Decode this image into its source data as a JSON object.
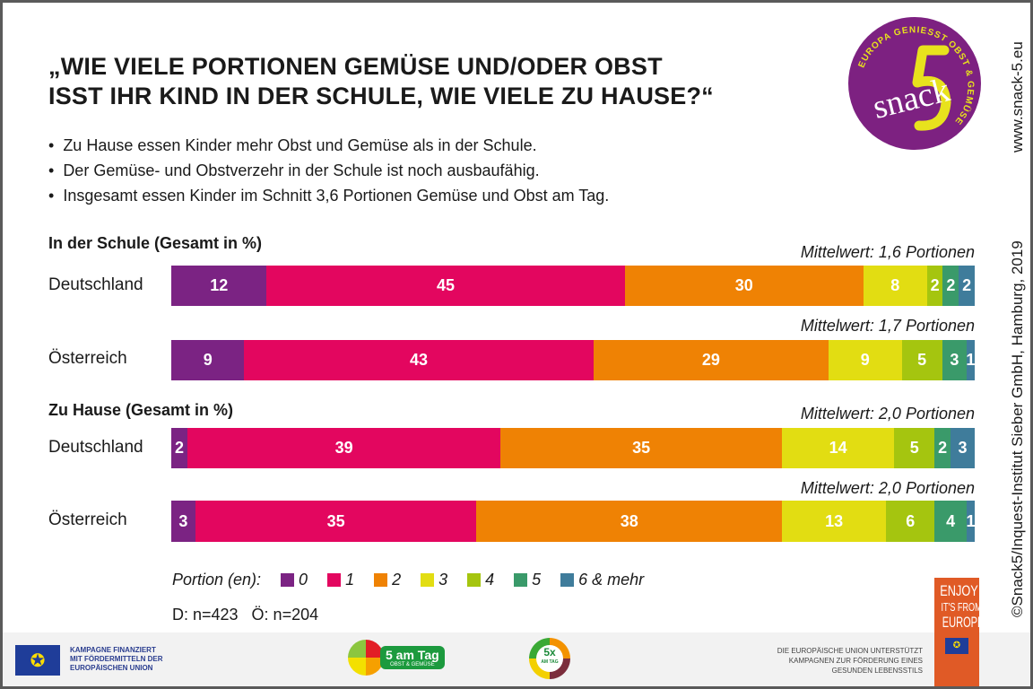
{
  "title_lines": [
    "„WIE VIELE PORTIONEN GEMÜSE UND/ODER OBST",
    "ISST IHR KIND IN DER SCHULE, WIE VIELE ZU HAUSE?“"
  ],
  "bullets": [
    "Zu Hause essen Kinder mehr Obst und Gemüse als in der Schule.",
    "Der Gemüse- und Obstverzehr in der Schule ist noch ausbaufähig.",
    "Insgesamt essen Kinder im Schnitt 3,6 Portionen Gemüse und Obst am Tag."
  ],
  "logo": {
    "text": "snack",
    "numeral": "5",
    "ring": "EUROPA GENIESST OBST & GEMÜSE",
    "colors": {
      "bg": "#7d2181",
      "accent": "#e8e21d"
    }
  },
  "side": {
    "url": "www.snack-5.eu",
    "copyright": "©Snack5/Inquest-Institut Sieber GmbH, Hamburg, 2019"
  },
  "chart_data": {
    "type": "bar",
    "orientation": "horizontal",
    "stacked": true,
    "unit": "%",
    "categories": [
      "0",
      "1",
      "2",
      "3",
      "4",
      "5",
      "6 & mehr"
    ],
    "colors": [
      "#7b2383",
      "#e3065f",
      "#ef8204",
      "#e2dd12",
      "#a5c50f",
      "#3a9a6a",
      "#3f7c9b"
    ],
    "legend_title": "Portion (en):",
    "groups": [
      {
        "title": "In der Schule (Gesamt in %)",
        "rows": [
          {
            "label": "Deutschland",
            "mean": "Mittelwert: 1,6 Portionen",
            "values": [
              12,
              45,
              30,
              8,
              2,
              2,
              2
            ]
          },
          {
            "label": "Österreich",
            "mean": "Mittelwert: 1,7 Portionen",
            "values": [
              9,
              43,
              29,
              9,
              5,
              3,
              1
            ]
          }
        ]
      },
      {
        "title": "Zu Hause (Gesamt in %)",
        "rows": [
          {
            "label": "Deutschland",
            "mean": "Mittelwert: 2,0 Portionen",
            "values": [
              2,
              39,
              35,
              14,
              5,
              2,
              3
            ]
          },
          {
            "label": "Österreich",
            "mean": "Mittelwert: 2,0 Portionen",
            "values": [
              3,
              35,
              38,
              13,
              6,
              4,
              1
            ]
          }
        ]
      }
    ],
    "sample": "D: n=423   Ö: n=204"
  },
  "footer": {
    "eu_left": [
      "KAMPAGNE FINANZIERT",
      "MIT FÖRDERMITTELN DER",
      "EUROPÄISCHEN UNION"
    ],
    "five_am_tag": "5 am Tag",
    "five_am_tag_sub": "OBST & GEMÜSE",
    "five_x": "5x",
    "five_x_sub": "AM TAG",
    "eu_right": [
      "DIE EUROPÄISCHE UNION UNTERSTÜTZT",
      "KAMPAGNEN ZUR FÖRDERUNG EINES",
      "GESUNDEN LEBENSSTILS"
    ],
    "enjoy": [
      "ENJOY",
      "IT'S FROM",
      "EUROPE"
    ]
  }
}
